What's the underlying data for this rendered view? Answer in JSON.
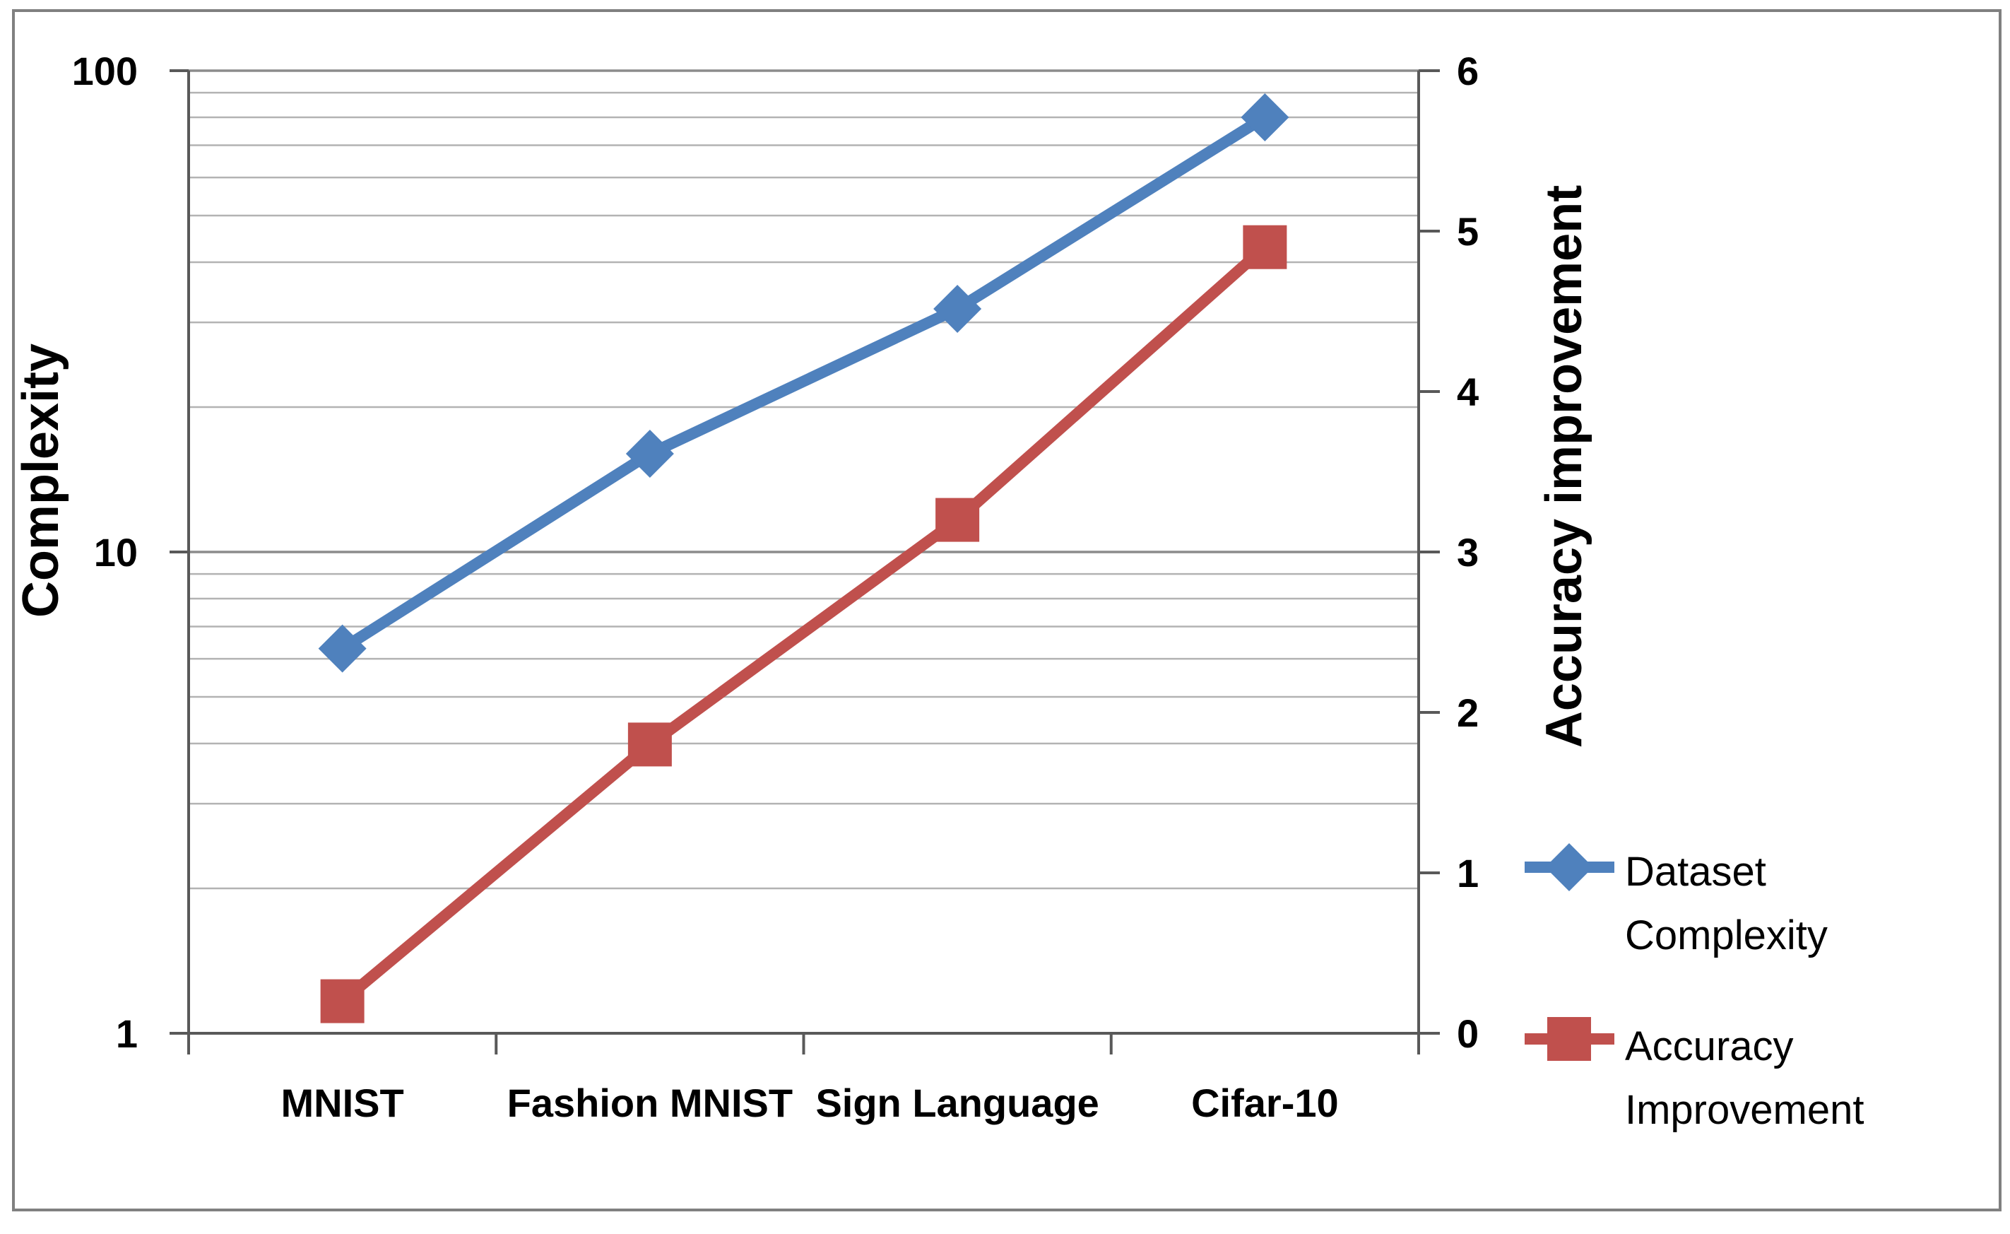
{
  "chart_data": {
    "type": "line",
    "title": "",
    "categories": [
      "MNIST",
      "Fashion MNIST",
      "Sign Language",
      "Cifar-10"
    ],
    "series": [
      {
        "name": "Dataset Complexity",
        "axis": "left",
        "color": "#4f81bd",
        "marker": "diamond",
        "values": [
          6.3,
          16,
          32,
          80
        ]
      },
      {
        "name": "Accuracy Improvement",
        "axis": "right",
        "color": "#c0504d",
        "marker": "square",
        "values": [
          0.2,
          1.8,
          3.2,
          4.9
        ]
      }
    ],
    "left_axis": {
      "title": "Complexity",
      "scale": "log",
      "min": 1,
      "max": 100,
      "ticks": [
        1,
        10,
        100
      ],
      "minor_gridlines": [
        2,
        3,
        4,
        5,
        6,
        7,
        8,
        9,
        20,
        30,
        40,
        50,
        60,
        70,
        80,
        90
      ]
    },
    "right_axis": {
      "title": "Accuracy improvement",
      "scale": "linear",
      "min": 0,
      "max": 6,
      "ticks": [
        0,
        1,
        2,
        3,
        4,
        5,
        6
      ]
    },
    "grid": "horizontal-only",
    "legend_position": "right-bottom",
    "legend": [
      {
        "series": "Dataset Complexity",
        "label_lines": [
          "Dataset",
          "Complexity"
        ]
      },
      {
        "series": "Accuracy Improvement",
        "label_lines": [
          "Accuracy",
          "Improvement"
        ]
      }
    ]
  },
  "colors": {
    "series_blue": "#4f81bd",
    "series_red": "#c0504d",
    "gridline_minor": "#b3b3b3",
    "gridline_major": "#8c8c8c",
    "axis_line": "#595959",
    "figure_border": "#808080",
    "text": "#000000",
    "background": "#ffffff"
  }
}
